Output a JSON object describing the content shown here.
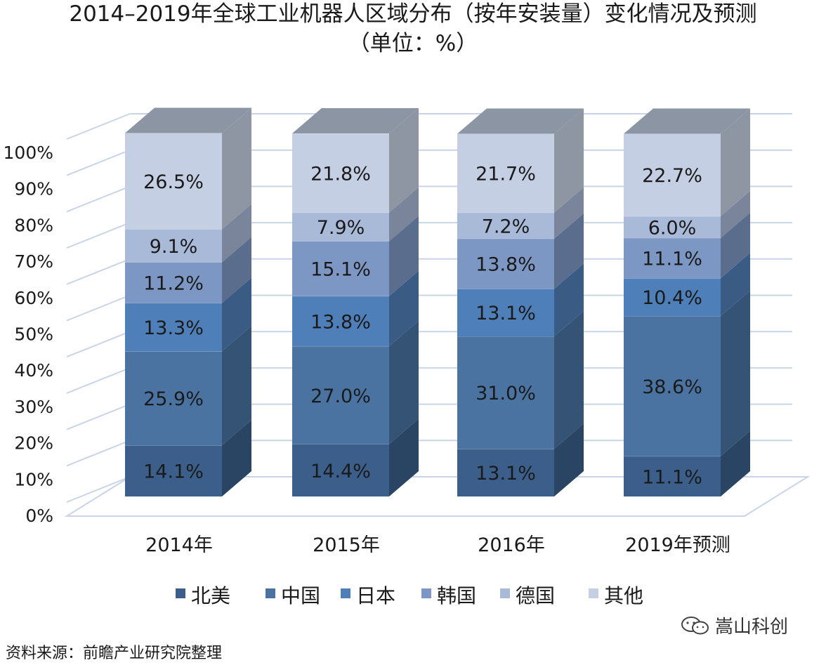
{
  "chart_data": {
    "type": "bar",
    "stacked": true,
    "three_d": true,
    "title": "2014–2019年全球工业机器人区域分布（按年安装量）变化情况及预测",
    "subtitle": "（单位：%）",
    "categories": [
      "2014年",
      "2015年",
      "2016年",
      "2019年预测"
    ],
    "series": [
      {
        "name": "北美",
        "color": "#3b5f8a",
        "values": [
          14.1,
          14.4,
          13.1,
          11.1
        ]
      },
      {
        "name": "中国",
        "color": "#4a73a2",
        "values": [
          25.9,
          27.0,
          31.0,
          38.6
        ]
      },
      {
        "name": "日本",
        "color": "#4f7fb8",
        "values": [
          13.3,
          13.8,
          13.1,
          10.4
        ]
      },
      {
        "name": "韩国",
        "color": "#7d97c4",
        "values": [
          11.2,
          15.1,
          13.8,
          11.1
        ]
      },
      {
        "name": "德国",
        "color": "#a9b9d8",
        "values": [
          9.1,
          7.9,
          7.2,
          6.0
        ]
      },
      {
        "name": "其他",
        "color": "#c5cfe3",
        "values": [
          26.5,
          21.8,
          21.7,
          22.7
        ]
      }
    ],
    "labels": [
      [
        "14.1%",
        "14.4%",
        "13.1%",
        "11.1%"
      ],
      [
        "25.9%",
        "27.0%",
        "31.0%",
        "38.6%"
      ],
      [
        "13.3%",
        "13.8%",
        "13.1%",
        "10.4%"
      ],
      [
        "11.2%",
        "15.1%",
        "13.8%",
        "11.1%"
      ],
      [
        "9.1%",
        "7.9%",
        "7.2%",
        "6.0%"
      ],
      [
        "26.5%",
        "21.8%",
        "21.7%",
        "22.7%"
      ]
    ],
    "yticks": [
      "0%",
      "10%",
      "20%",
      "30%",
      "40%",
      "50%",
      "60%",
      "70%",
      "80%",
      "90%",
      "100%"
    ],
    "ylim": [
      0,
      100
    ],
    "grid": true,
    "legend_position": "bottom"
  },
  "source": "资料来源：前瞻产业研究院整理",
  "watermark": "嵩山科创"
}
